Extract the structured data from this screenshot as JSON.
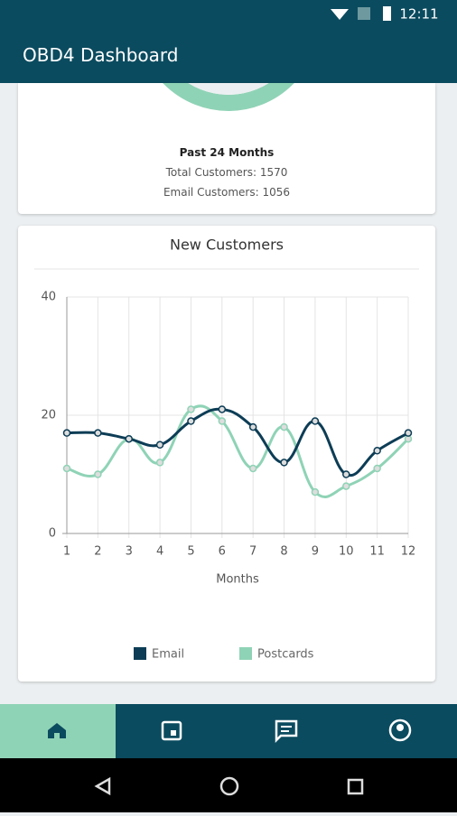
{
  "status_bar": {
    "time": "12:11"
  },
  "app_bar": {
    "title": "OBD4 Dashboard"
  },
  "summary": {
    "period": "Past 24 Months",
    "total": "Total Customers: 1570",
    "email": "Email Customers: 1056"
  },
  "chart_data": {
    "type": "line",
    "title": "New Customers",
    "xlabel": "Months",
    "x": [
      1,
      2,
      3,
      4,
      5,
      6,
      7,
      8,
      9,
      10,
      11,
      12
    ],
    "xlim": [
      1,
      12
    ],
    "xticks": [
      1,
      2,
      3,
      4,
      5,
      6,
      7,
      8,
      9,
      10,
      11,
      12
    ],
    "ylim": [
      0,
      40
    ],
    "yticks": [
      0,
      20,
      40
    ],
    "grid": true,
    "legend": "bottom",
    "series": [
      {
        "name": "Email",
        "color": "#0d3d56",
        "values": [
          17,
          17,
          16,
          15,
          19,
          21,
          18,
          12,
          19,
          10,
          14,
          17
        ]
      },
      {
        "name": "Postcards",
        "color": "#8fd3b6",
        "values": [
          11,
          10,
          16,
          12,
          21,
          19,
          11,
          18,
          7,
          8,
          11,
          16
        ]
      }
    ]
  }
}
